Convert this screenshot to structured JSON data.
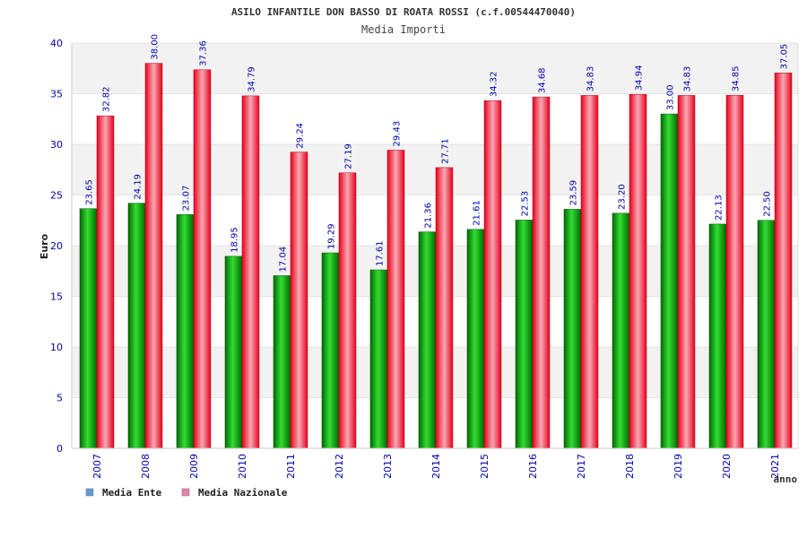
{
  "chart_data": {
    "type": "bar",
    "title": "ASILO INFANTILE DON BASSO DI ROATA ROSSI (c.f.00544470040)",
    "subtitle": "Media Importi",
    "xlabel": "anno",
    "ylabel": "Euro",
    "ylim": [
      0,
      40
    ],
    "yticks": [
      0,
      5,
      10,
      15,
      20,
      25,
      30,
      35,
      40
    ],
    "categories": [
      "2007",
      "2008",
      "2009",
      "2010",
      "2011",
      "2012",
      "2013",
      "2014",
      "2015",
      "2016",
      "2017",
      "2018",
      "2019",
      "2020",
      "2021"
    ],
    "series": [
      {
        "name": "Media Ente",
        "values": [
          23.65,
          24.19,
          23.07,
          18.95,
          17.04,
          19.29,
          17.61,
          21.36,
          21.61,
          22.53,
          23.59,
          23.2,
          33.0,
          22.13,
          22.5
        ],
        "labels": [
          "23.65",
          "24.19",
          "23.07",
          "18.95",
          "17.04",
          "19.29",
          "17.61",
          "21.36",
          "21.61",
          "22.53",
          "23.59",
          "23.20",
          "33.00",
          "22.13",
          "22.50"
        ]
      },
      {
        "name": "Media Nazionale",
        "values": [
          32.82,
          38.0,
          37.36,
          34.79,
          29.24,
          27.19,
          29.43,
          27.71,
          34.32,
          34.68,
          34.83,
          34.94,
          34.83,
          34.85,
          37.05
        ],
        "labels": [
          "32.82",
          "38.00",
          "37.36",
          "34.79",
          "29.24",
          "27.19",
          "29.43",
          "27.71",
          "34.32",
          "34.68",
          "34.83",
          "34.94",
          "34.83",
          "34.85",
          "37.05"
        ]
      }
    ],
    "legend": {
      "placement": "bottom-left",
      "items": [
        {
          "label": "Media Ente",
          "color": "#5b9bd5"
        },
        {
          "label": "Media Nazionale",
          "color": "#e87fa8"
        }
      ]
    },
    "colors": {
      "ente_dark": "#006b00",
      "ente_light": "#33dd33",
      "naz_dark": "#e8001c",
      "naz_light": "#f7a9b3",
      "grid_band": "#f2f2f2",
      "label": "#0000aa"
    }
  }
}
